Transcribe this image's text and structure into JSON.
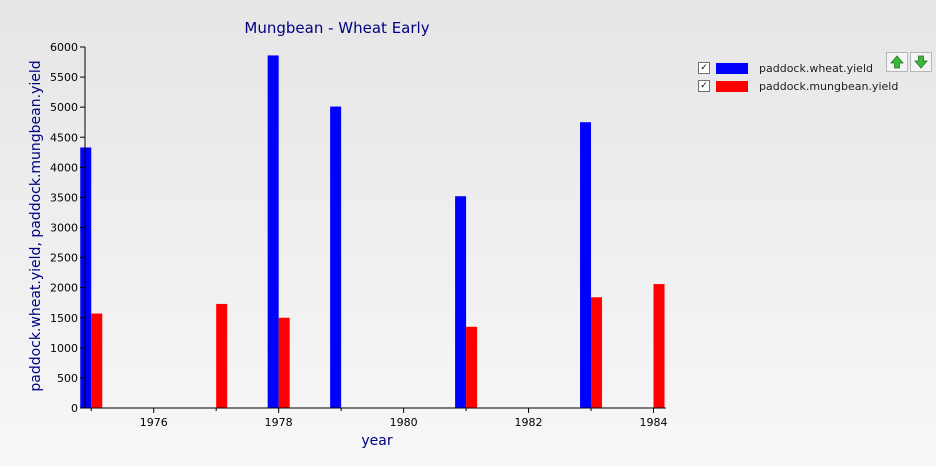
{
  "chart_data": {
    "type": "bar",
    "title": "Mungbean - Wheat Early",
    "xlabel": "year",
    "ylabel": "paddock.wheat.yield, paddock.mungbean.yield",
    "x": [
      1975,
      1976,
      1977,
      1978,
      1979,
      1980,
      1981,
      1982,
      1983,
      1984
    ],
    "xticks": [
      1976,
      1978,
      1980,
      1982,
      1984
    ],
    "xlim": [
      1974.9,
      1984.2
    ],
    "yticks": [
      0,
      500,
      1000,
      1500,
      2000,
      2500,
      3000,
      3500,
      4000,
      4500,
      5000,
      5500,
      6000
    ],
    "ylim": [
      0,
      6000
    ],
    "grid": false,
    "legend_position": "right",
    "series": [
      {
        "name": "paddock.wheat.yield",
        "color": "#0000ff",
        "values": [
          4330,
          0,
          0,
          5860,
          5010,
          0,
          3520,
          0,
          4750,
          0
        ]
      },
      {
        "name": "paddock.mungbean.yield",
        "color": "#ff0000",
        "values": [
          1570,
          0,
          1730,
          1500,
          0,
          0,
          1350,
          0,
          1840,
          2060
        ]
      }
    ]
  },
  "legend": {
    "items": [
      {
        "label": "paddock.wheat.yield",
        "checked": "✓",
        "color": "#0000ff"
      },
      {
        "label": "paddock.mungbean.yield",
        "checked": "✓",
        "color": "#ff0000"
      }
    ]
  },
  "controls": {
    "move_up_icon": "arrow-up-icon",
    "move_down_icon": "arrow-down-icon"
  }
}
